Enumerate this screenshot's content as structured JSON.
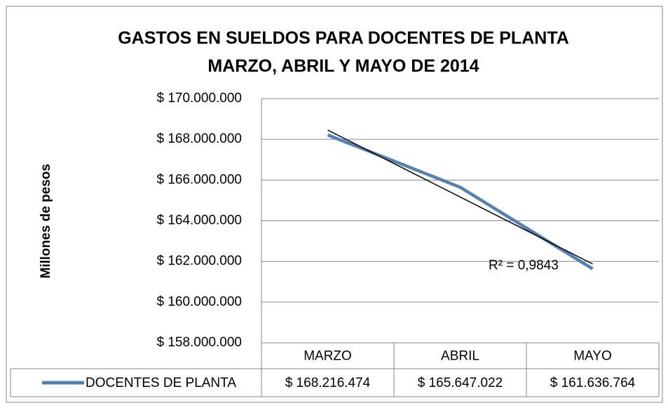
{
  "chart_data": {
    "type": "line",
    "title": [
      "GASTOS EN SUELDOS PARA DOCENTES DE PLANTA",
      "MARZO, ABRIL Y MAYO DE 2014"
    ],
    "y_axis_label": "Millones de pesos",
    "categories": [
      "MARZO",
      "ABRIL",
      "MAYO"
    ],
    "series": [
      {
        "name": "DOCENTES DE PLANTA",
        "color": "#4f81bd",
        "values": [
          168216474,
          165647022,
          161636764
        ],
        "value_labels": [
          "$ 168.216.474",
          "$ 165.647.022",
          "$ 161.636.764"
        ]
      }
    ],
    "trendline": {
      "type": "linear",
      "color": "#000000",
      "annotation": "R² = 0,9843"
    },
    "ylim": [
      158000000,
      170000000
    ],
    "yticks": [
      {
        "value": 158000000,
        "label": "$ 158.000.000"
      },
      {
        "value": 160000000,
        "label": "$ 160.000.000"
      },
      {
        "value": 162000000,
        "label": "$ 162.000.000"
      },
      {
        "value": 164000000,
        "label": "$ 164.000.000"
      },
      {
        "value": 166000000,
        "label": "$ 166.000.000"
      },
      {
        "value": 168000000,
        "label": "$ 168.000.000"
      },
      {
        "value": 170000000,
        "label": "$ 170.000.000"
      }
    ],
    "grid": true,
    "data_table": true
  }
}
